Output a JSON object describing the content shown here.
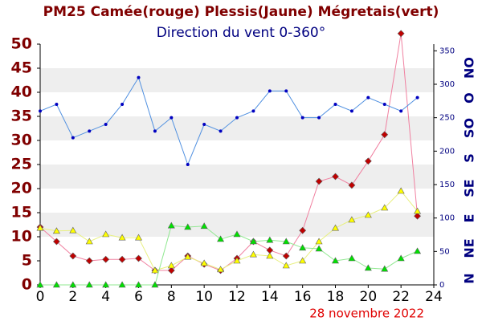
{
  "chart_data": {
    "type": "line",
    "title": "PM25 Camée(rouge) Plessis(Jaune) Mégretais(vert)",
    "subtitle": "Direction du vent 0-360°",
    "date_label": "28 novembre 2022",
    "x": [
      0,
      1,
      2,
      3,
      4,
      5,
      6,
      7,
      8,
      9,
      10,
      11,
      12,
      13,
      14,
      15,
      16,
      17,
      18,
      19,
      20,
      21,
      22,
      23
    ],
    "xlim": [
      0,
      24
    ],
    "xticks": [
      0,
      2,
      4,
      6,
      8,
      10,
      12,
      14,
      16,
      18,
      20,
      22,
      24
    ],
    "ylim": [
      0,
      50
    ],
    "yticks": [
      0,
      5,
      10,
      15,
      20,
      25,
      30,
      35,
      40,
      45,
      50
    ],
    "y2lim": [
      0,
      360
    ],
    "y2ticks": [
      0,
      50,
      100,
      150,
      200,
      250,
      300,
      350
    ],
    "compass": [
      {
        "value": 0,
        "label": "N"
      },
      {
        "value": 45,
        "label": "NE"
      },
      {
        "value": 90,
        "label": "E"
      },
      {
        "value": 135,
        "label": "SE"
      },
      {
        "value": 180,
        "label": "S"
      },
      {
        "value": 225,
        "label": "SO"
      },
      {
        "value": 270,
        "label": "O"
      },
      {
        "value": 315,
        "label": "NO"
      }
    ],
    "grid": "bands",
    "series": [
      {
        "color": "#c00000",
        "line_color": "#f080a0",
        "marker": "diamond",
        "values": [
          12,
          9,
          6,
          5,
          5.3,
          5.3,
          5.5,
          3,
          3,
          6,
          4.3,
          3,
          5.5,
          9,
          7.2,
          6,
          11.3,
          21.5,
          22.5,
          20.7,
          25.7,
          31.2,
          52.2,
          14.3
        ]
      },
      {
        "color": "#ffff00",
        "line_color": "#e8f080",
        "marker": "triangle",
        "values": [
          11.8,
          11.2,
          11.3,
          9,
          10.5,
          9.8,
          9.8,
          3,
          4,
          5.8,
          4.5,
          3.2,
          5,
          6.3,
          6,
          4,
          5,
          9,
          11.8,
          13.5,
          14.5,
          16,
          19.5,
          15.3
        ]
      },
      {
        "color": "#00e000",
        "line_color": "#90e890",
        "marker": "triangle",
        "values": [
          0,
          0,
          0,
          0,
          0,
          0,
          0,
          0,
          12.3,
          12,
          12.2,
          9.5,
          10.5,
          9,
          9.3,
          9,
          7.7,
          7.5,
          5,
          5.5,
          3.5,
          3.3,
          5.5,
          7
        ]
      },
      {
        "color": "#0000c0",
        "line_color": "#5090e0",
        "marker": "circle",
        "axis": "y2",
        "values": [
          260,
          270,
          220,
          230,
          240,
          270,
          310,
          230,
          250,
          180,
          240,
          230,
          250,
          260,
          290,
          290,
          250,
          250,
          270,
          260,
          280,
          270,
          260,
          280
        ]
      }
    ]
  }
}
